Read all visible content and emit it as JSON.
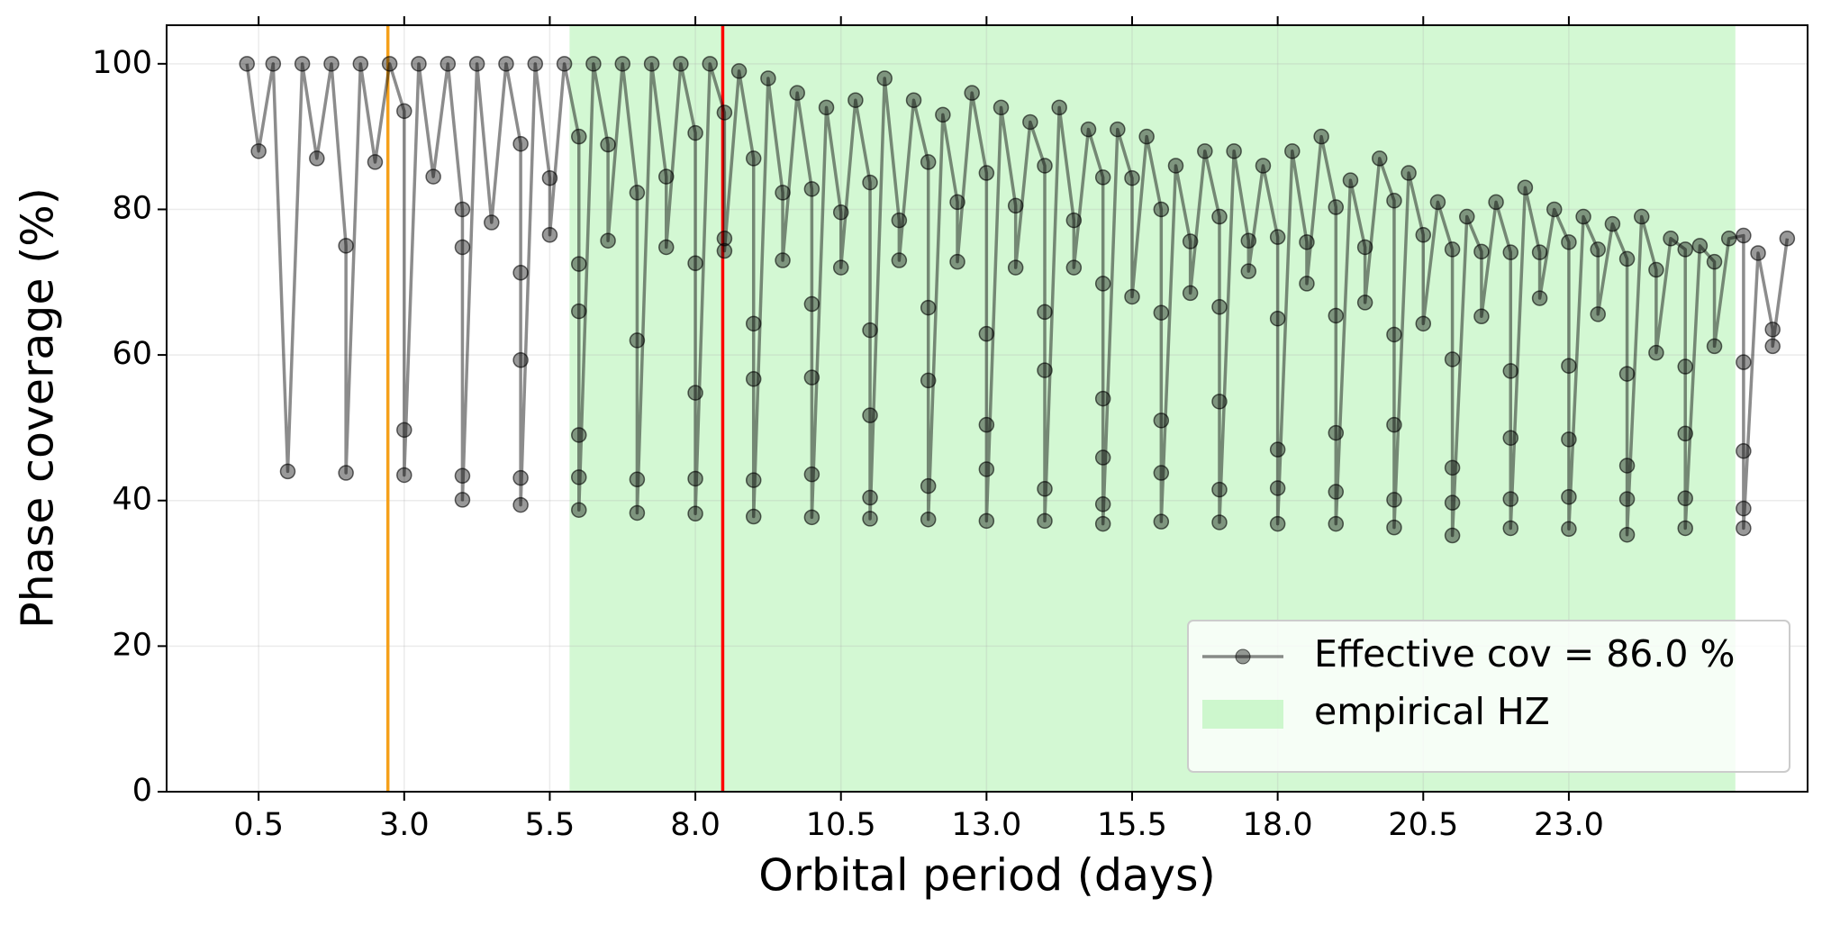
{
  "chart_data": {
    "type": "line",
    "x_label": "Orbital period (days)",
    "y_label": "Phase coverage (%)",
    "xlim": [
      -1.08,
      27.1
    ],
    "ylim": [
      0,
      105.3
    ],
    "xticks": [
      0.5,
      {
        "value": 3,
        "label": "3.0"
      },
      5.5,
      {
        "value": 8,
        "label": "8.0"
      },
      10.5,
      {
        "value": 13,
        "label": "13.0"
      },
      15.5,
      {
        "value": 18,
        "label": "18.0"
      },
      20.5,
      {
        "value": 23,
        "label": "23.0"
      }
    ],
    "yticks": [
      0,
      20,
      40,
      60,
      80,
      100
    ],
    "grid": true,
    "legend_loc": "lower right",
    "spans": [
      {
        "name": "empirical HZ",
        "xrange": [
          5.84,
          25.86
        ],
        "color": "#90ee90"
      }
    ],
    "vlines": [
      {
        "x": 2.72,
        "color": "#f5a01a"
      },
      {
        "x": 8.47,
        "color": "#ff0000"
      }
    ],
    "series": [
      {
        "name": "Effective cov = 86.0 %",
        "color": "#000000",
        "x": [
          0.3,
          0.5,
          0.75,
          1,
          1.25,
          1.5,
          1.75,
          2,
          2,
          2.25,
          2.5,
          2.75,
          3,
          3,
          3,
          3.25,
          3.5,
          3.75,
          4,
          4,
          4,
          4,
          4.25,
          4.5,
          4.75,
          5,
          5,
          5,
          5,
          5,
          5.25,
          5.5,
          5.5,
          5.75,
          6,
          6,
          6,
          6,
          6,
          6,
          6.25,
          6.5,
          6.5,
          6.75,
          7,
          7,
          7,
          7,
          7.25,
          7.5,
          7.5,
          7.75,
          8,
          8,
          8,
          8,
          8,
          8.25,
          8.5,
          8.5,
          8.5,
          8.75,
          9,
          9,
          9,
          9,
          9,
          9.25,
          9.5,
          9.5,
          9.75,
          10,
          10,
          10,
          10,
          10,
          10.25,
          10.5,
          10.5,
          10.75,
          11,
          11,
          11,
          11,
          11,
          11.25,
          11.5,
          11.5,
          11.75,
          12,
          12,
          12,
          12,
          12,
          12.25,
          12.5,
          12.5,
          12.75,
          13,
          13,
          13,
          13,
          13,
          13.25,
          13.5,
          13.5,
          13.75,
          14,
          14,
          14,
          14,
          14,
          14.25,
          14.5,
          14.5,
          14.75,
          15,
          15,
          15,
          15,
          15,
          15,
          15.25,
          15.5,
          15.5,
          15.75,
          16,
          16,
          16,
          16,
          16,
          16.25,
          16.5,
          16.5,
          16.75,
          17,
          17,
          17,
          17,
          17,
          17.25,
          17.5,
          17.5,
          17.75,
          18,
          18,
          18,
          18,
          18,
          18.25,
          18.5,
          18.5,
          18.75,
          19,
          19,
          19,
          19,
          19,
          19.25,
          19.5,
          19.5,
          19.75,
          20,
          20,
          20,
          20,
          20,
          20.25,
          20.5,
          20.5,
          20.75,
          21,
          21,
          21,
          21,
          21,
          21.25,
          21.5,
          21.5,
          21.75,
          22,
          22,
          22,
          22,
          22,
          22.25,
          22.5,
          22.5,
          22.75,
          23,
          23,
          23,
          23,
          23,
          23.25,
          23.5,
          23.5,
          23.75,
          24,
          24,
          24,
          24,
          24,
          24.25,
          24.5,
          24.5,
          24.75,
          25,
          25,
          25,
          25,
          25,
          25.25,
          25.5,
          25.5,
          25.75,
          26,
          26,
          26,
          26,
          26,
          26.25,
          26.5,
          26.5,
          26.75
        ],
        "values": [
          100,
          88,
          100,
          44,
          100,
          87,
          100,
          75,
          43.8,
          100,
          86.5,
          100,
          93.5,
          49.7,
          43.5,
          100,
          84.5,
          100,
          80,
          74.8,
          43.4,
          40.1,
          100,
          78.2,
          100,
          89,
          71.3,
          59.3,
          43.1,
          39.4,
          100,
          84.3,
          76.5,
          100,
          90,
          72.5,
          66,
          49,
          43.2,
          38.7,
          100,
          88.9,
          75.7,
          100,
          82.3,
          62,
          42.9,
          38.3,
          100,
          84.5,
          74.8,
          100,
          90.5,
          72.6,
          54.8,
          43,
          38.2,
          100,
          93.3,
          76,
          74.3,
          99,
          87,
          64.3,
          56.7,
          42.8,
          37.8,
          98,
          82.3,
          73,
          96,
          82.8,
          67,
          56.9,
          43.6,
          37.7,
          94,
          79.6,
          72,
          95,
          83.7,
          63.4,
          51.7,
          40.4,
          37.5,
          98,
          78.5,
          73,
          95,
          86.5,
          66.5,
          56.5,
          42,
          37.4,
          93,
          81,
          72.8,
          96,
          85,
          62.9,
          50.4,
          44.3,
          37.2,
          94,
          80.5,
          72,
          92,
          86,
          65.9,
          57.9,
          41.6,
          37.2,
          94,
          78.5,
          72,
          91,
          84.4,
          69.8,
          54,
          45.9,
          39.5,
          36.8,
          91,
          84.3,
          68,
          90,
          80,
          65.8,
          51,
          43.8,
          37.1,
          86,
          75.6,
          68.5,
          88,
          79,
          66.6,
          53.6,
          41.5,
          37,
          88,
          75.7,
          71.5,
          86,
          76.2,
          65,
          47,
          41.7,
          36.8,
          88,
          75.5,
          69.8,
          90,
          80.3,
          65.4,
          49.3,
          41.2,
          36.8,
          84,
          74.8,
          67.2,
          87,
          81.2,
          62.8,
          50.4,
          40.1,
          36.3,
          85,
          76.5,
          64.3,
          81,
          74.5,
          59.4,
          44.5,
          39.7,
          35.2,
          79,
          74.2,
          65.3,
          81,
          74.1,
          57.8,
          48.6,
          40.2,
          36.2,
          83,
          74.1,
          67.8,
          80,
          75.5,
          58.5,
          48.4,
          40.5,
          36.1,
          79,
          74.5,
          65.6,
          78,
          73.2,
          57.4,
          44.8,
          40.2,
          35.3,
          79,
          71.7,
          60.3,
          76,
          74.5,
          58.4,
          49.2,
          40.3,
          36.2,
          75,
          72.8,
          61.2,
          76,
          76.4,
          59,
          46.8,
          38.9,
          36.2,
          74,
          63.5,
          61.2,
          76
        ]
      }
    ]
  }
}
